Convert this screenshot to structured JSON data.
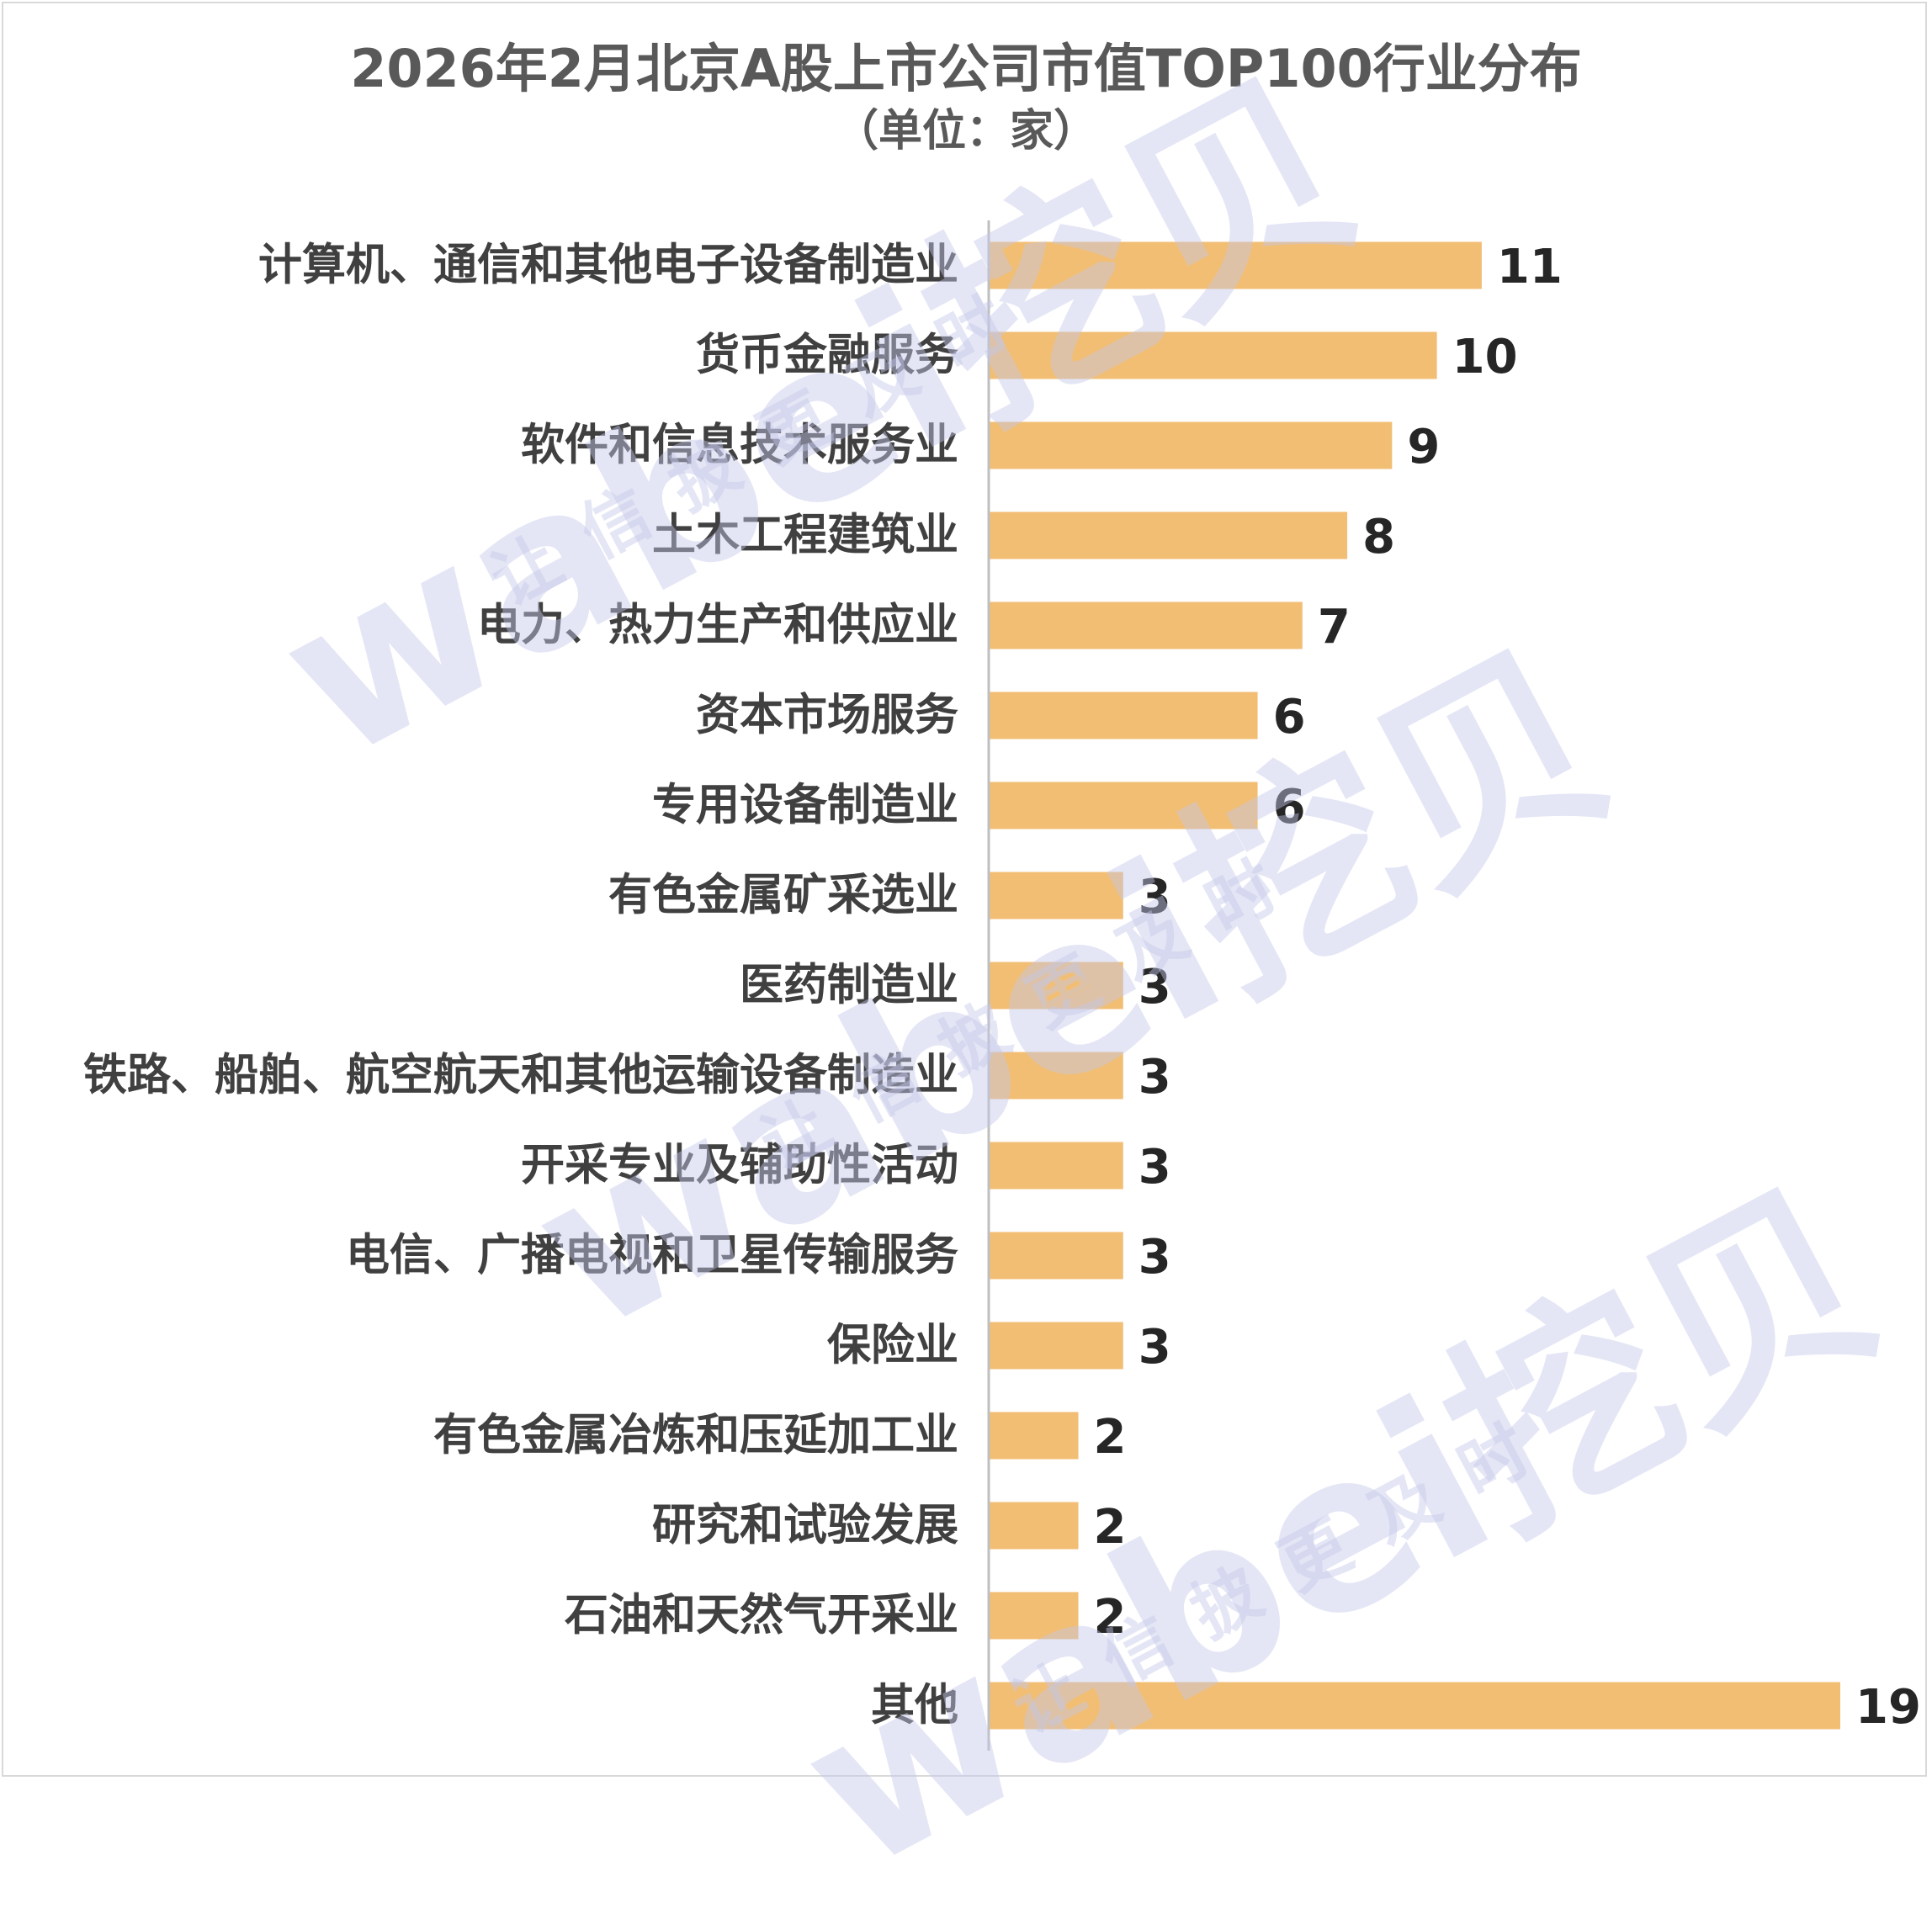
{
  "chart_data": {
    "type": "bar",
    "orientation": "horizontal",
    "title": "2026年2月北京A股上市公司市值TOP100行业分布",
    "subtitle": "（单位：家）",
    "categories": [
      "计算机、通信和其他电子设备制造业",
      "货币金融服务",
      "软件和信息技术服务业",
      "土木工程建筑业",
      "电力、热力生产和供应业",
      "资本市场服务",
      "专用设备制造业",
      "有色金属矿采选业",
      "医药制造业",
      "铁路、船舶、航空航天和其他运输设备制造业",
      "开采专业及辅助性活动",
      "电信、广播电视和卫星传输服务",
      "保险业",
      "有色金属冶炼和压延加工业",
      "研究和试验发展",
      "石油和天然气开采业",
      "其他"
    ],
    "values": [
      11,
      10,
      9,
      8,
      7,
      6,
      6,
      3,
      3,
      3,
      3,
      3,
      3,
      2,
      2,
      2,
      19
    ],
    "xlim": [
      0,
      19
    ],
    "grid": false,
    "data_labels": true,
    "bar_color": "#f2be74",
    "legend": "none"
  },
  "watermark": {
    "brand": "wabei挖贝",
    "slogan": "让信披更及时"
  }
}
